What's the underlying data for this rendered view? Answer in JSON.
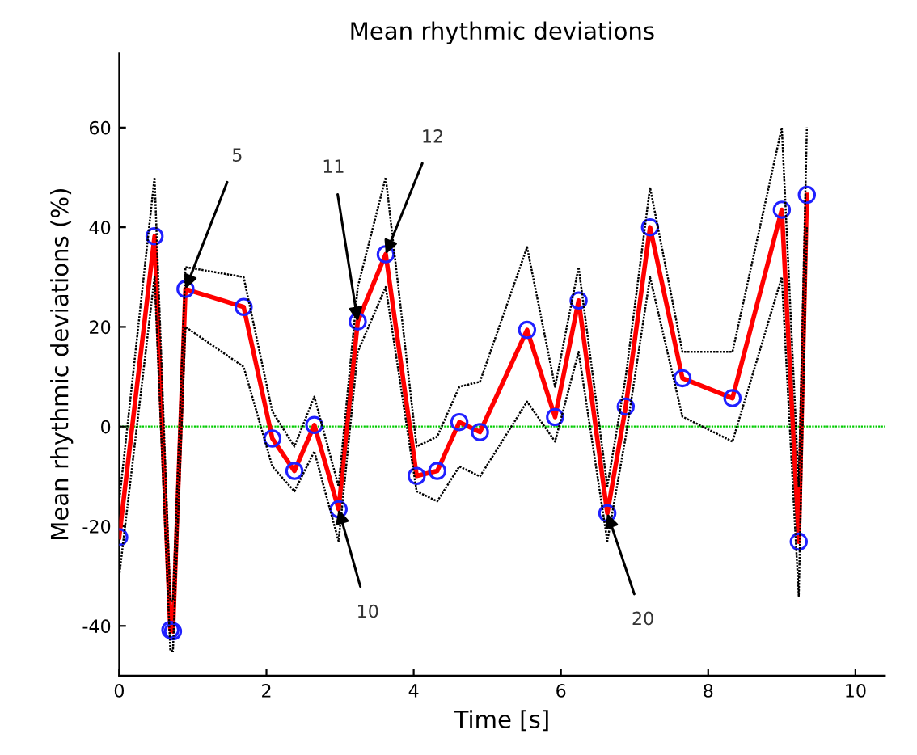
{
  "chart_data": {
    "type": "line",
    "title": "Mean rhythmic deviations",
    "xlabel": "Time [s]",
    "ylabel": "Mean rhythmic deviations (%)",
    "xlim": [
      0,
      10.4
    ],
    "xticks": [
      0,
      2,
      4,
      6,
      8,
      10
    ],
    "ylim": [
      -50,
      75
    ],
    "yticks": [
      -40,
      -20,
      0,
      20,
      40,
      60
    ],
    "grid": false,
    "legend": false,
    "x": [
      0,
      0.48,
      0.695,
      0.73,
      0.9,
      1.69,
      2.08,
      2.38,
      2.65,
      2.98,
      3.24,
      3.62,
      4.04,
      4.32,
      4.62,
      4.9,
      5.54,
      5.92,
      6.24,
      6.63,
      6.88,
      7.21,
      7.65,
      8.33,
      9.0,
      9.23,
      9.34
    ],
    "series": [
      {
        "color": "#000000",
        "line_style": "dotted",
        "marker": "none",
        "values": [
          -15,
          50,
          -35,
          -35,
          32,
          30,
          3,
          -4,
          6,
          -12,
          28,
          50,
          -4,
          -2,
          8,
          9,
          36,
          8,
          32,
          -12,
          10,
          48,
          15,
          15,
          60,
          -12,
          60
        ]
      },
      {
        "color": "#000000",
        "line_style": "dotted",
        "marker": "none",
        "values": [
          -30,
          30,
          -45,
          -45,
          20,
          12,
          -8,
          -13,
          -5,
          -23,
          15,
          28,
          -13,
          -15,
          -8,
          -10,
          5,
          -3,
          15,
          -23,
          -2,
          30,
          2,
          -3,
          30,
          -34,
          40
        ]
      },
      {
        "color": "#ff0000",
        "line_style": "solid",
        "marker": "circle",
        "values": [
          -22.2,
          38.2,
          -40.8,
          -41.1,
          27.6,
          24.0,
          -2.4,
          -8.9,
          0.3,
          -16.6,
          21.1,
          34.6,
          -9.9,
          -8.9,
          0.9,
          -1.1,
          19.4,
          1.9,
          25.3,
          -17.4,
          4.0,
          40.0,
          9.7,
          5.7,
          43.5,
          -23.1,
          46.5
        ]
      }
    ],
    "ref_lines": [
      {
        "axis": "y",
        "value": 0,
        "color": "#00cc00",
        "line_style": "dotted"
      }
    ],
    "annotations": [
      {
        "text": "5",
        "x": 0.9,
        "y": 27.6
      },
      {
        "text": "11",
        "x": 3.24,
        "y": 21.1
      },
      {
        "text": "12",
        "x": 3.62,
        "y": 34.6
      },
      {
        "text": "10",
        "x": 2.98,
        "y": -16.6
      },
      {
        "text": "20",
        "x": 6.63,
        "y": -17.4
      }
    ]
  }
}
